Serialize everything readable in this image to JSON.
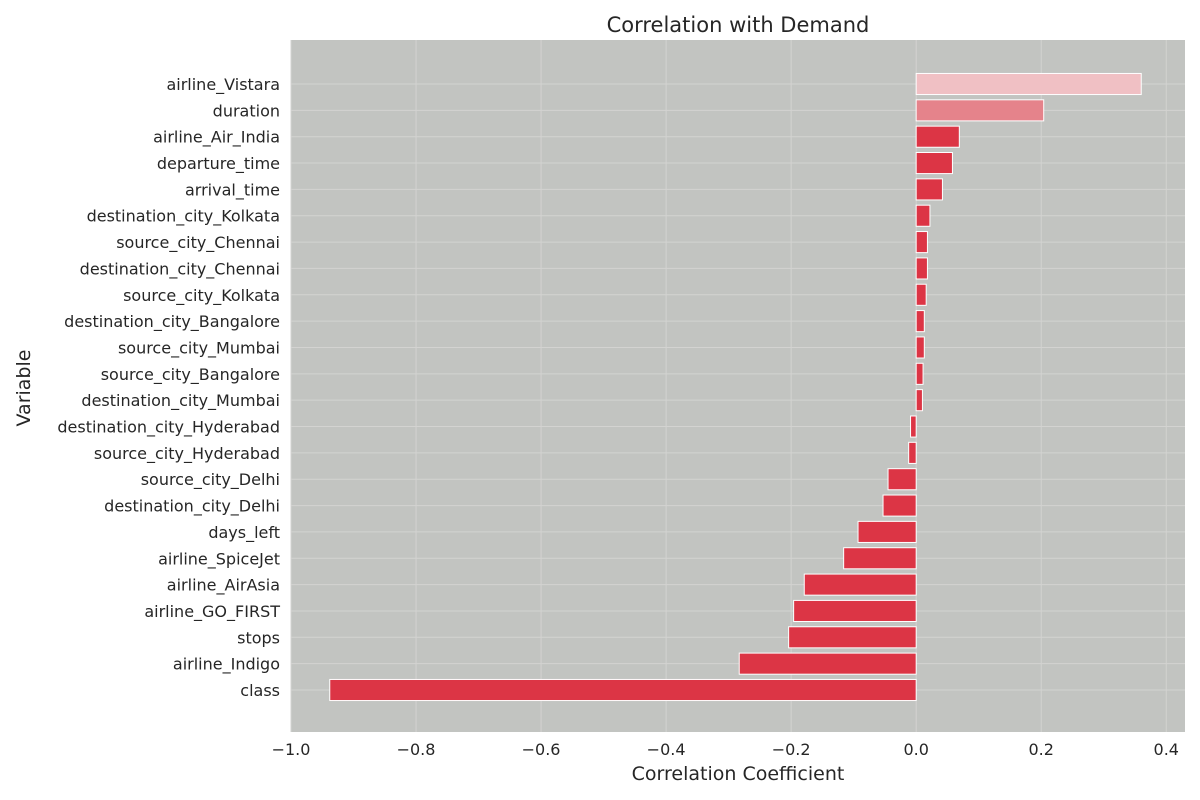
{
  "chart_data": {
    "type": "bar",
    "orientation": "horizontal",
    "title": "Correlation with Demand",
    "xlabel": "Correlation Coefficient",
    "ylabel": "Variable",
    "xlim": [
      -1.0,
      0.43
    ],
    "xticks": [
      -1.0,
      -0.8,
      -0.6,
      -0.4,
      -0.2,
      0.0,
      0.2,
      0.4
    ],
    "xtick_labels": [
      "−1.0",
      "−0.8",
      "−0.6",
      "−0.4",
      "−0.2",
      "0.0",
      "0.2",
      "0.4"
    ],
    "grid": true,
    "categories": [
      "airline_Vistara",
      "duration",
      "airline_Air_India",
      "departure_time",
      "arrival_time",
      "destination_city_Kolkata",
      "source_city_Chennai",
      "destination_city_Chennai",
      "source_city_Kolkata",
      "destination_city_Bangalore",
      "source_city_Mumbai",
      "source_city_Bangalore",
      "destination_city_Mumbai",
      "destination_city_Hyderabad",
      "source_city_Hyderabad",
      "source_city_Delhi",
      "destination_city_Delhi",
      "days_left",
      "airline_SpiceJet",
      "airline_AirAsia",
      "airline_GO_FIRST",
      "stops",
      "airline_Indigo",
      "class"
    ],
    "values": [
      0.36,
      0.204,
      0.069,
      0.058,
      0.042,
      0.022,
      0.018,
      0.018,
      0.016,
      0.013,
      0.013,
      0.011,
      0.01,
      -0.009,
      -0.012,
      -0.045,
      -0.053,
      -0.093,
      -0.116,
      -0.179,
      -0.196,
      -0.204,
      -0.283,
      -0.938
    ],
    "colors": {
      "plot_background": "#c2c4c1",
      "bar_default": "#dc3545",
      "bar_light": "#f0c0c4",
      "bar_mid": "#e5838b",
      "bar_edge": "#ffffff"
    }
  }
}
